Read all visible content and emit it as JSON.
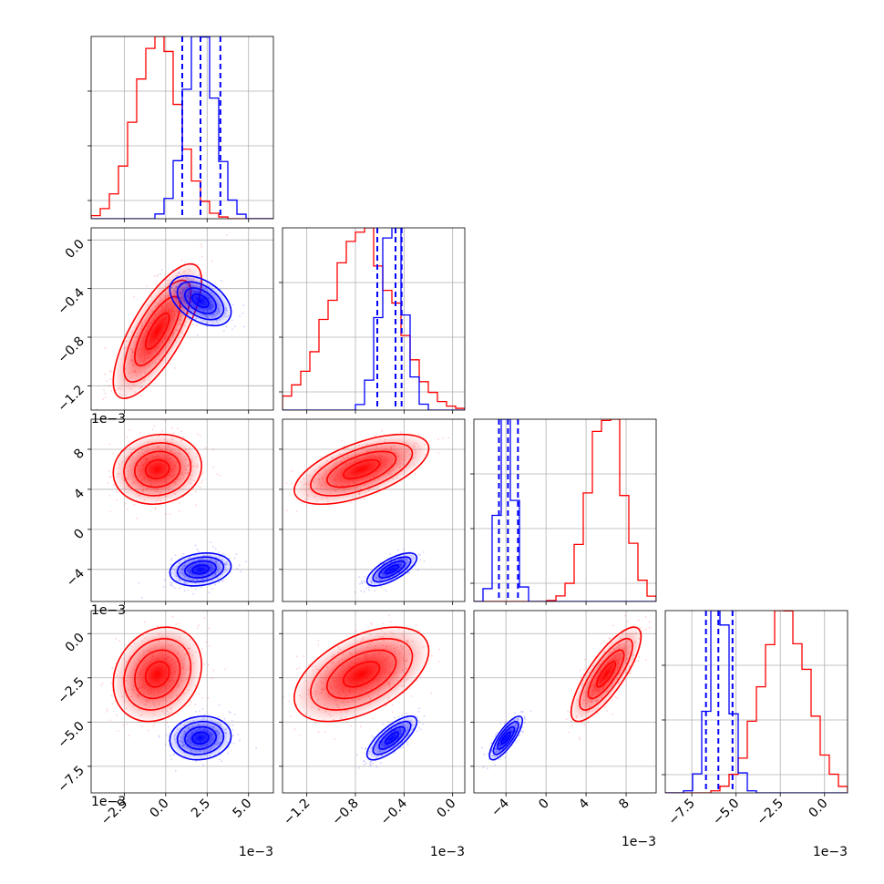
{
  "chart_data": {
    "type": "corner",
    "grid": true,
    "series": [
      {
        "name": "",
        "color": "#ff0000",
        "means": [
          -0.5,
          -0.75,
          6.0,
          -2.3
        ],
        "sds": [
          1.3,
          0.27,
          1.7,
          1.3
        ]
      },
      {
        "name": "",
        "color": "#0000ff",
        "means": [
          2.1,
          -0.5,
          -4.0,
          -5.9
        ],
        "sds": [
          0.9,
          0.1,
          0.8,
          0.6
        ]
      }
    ],
    "correlations": [
      {
        "series": 0,
        "i": 1,
        "j": 0,
        "rho": 0.75
      },
      {
        "series": 1,
        "i": 1,
        "j": 0,
        "rho": -0.45
      },
      {
        "series": 0,
        "i": 2,
        "j": 0,
        "rho": 0.1
      },
      {
        "series": 1,
        "i": 2,
        "j": 0,
        "rho": 0.2
      },
      {
        "series": 0,
        "i": 2,
        "j": 1,
        "rho": 0.6
      },
      {
        "series": 1,
        "i": 2,
        "j": 1,
        "rho": 0.7
      },
      {
        "series": 0,
        "i": 3,
        "j": 0,
        "rho": 0.2
      },
      {
        "series": 1,
        "i": 3,
        "j": 0,
        "rho": 0.1
      },
      {
        "series": 0,
        "i": 3,
        "j": 1,
        "rho": 0.5
      },
      {
        "series": 1,
        "i": 3,
        "j": 1,
        "rho": 0.75
      },
      {
        "series": 0,
        "i": 3,
        "j": 2,
        "rho": 0.8
      },
      {
        "series": 1,
        "i": 3,
        "j": 2,
        "rho": 0.8
      }
    ],
    "quantile_lines": [
      {
        "param": 0,
        "color": "#0000ff",
        "values": [
          1.0,
          2.1,
          3.3
        ]
      },
      {
        "param": 1,
        "color": "#0000ff",
        "values": [
          -0.62,
          -0.47,
          -0.42
        ]
      },
      {
        "param": 2,
        "color": "#0000ff",
        "values": [
          -4.7,
          -3.8,
          -2.8
        ]
      },
      {
        "param": 3,
        "color": "#0000ff",
        "values": [
          -6.7,
          -6.0,
          -5.2
        ]
      }
    ],
    "axes": [
      {
        "range": [
          -4.5,
          6.5
        ],
        "ticks": [
          -2.5,
          0.0,
          2.5,
          5.0
        ],
        "tick_labels": [
          "−2.5",
          "0.0",
          "2.5",
          "5.0"
        ],
        "offset": "1e−3"
      },
      {
        "range": [
          -1.4,
          0.1
        ],
        "ticks": [
          -1.2,
          -0.8,
          -0.4,
          0.0
        ],
        "tick_labels": [
          "−1.2",
          "−0.8",
          "−0.4",
          "0.0"
        ],
        "offset": "1e−3"
      },
      {
        "range": [
          -7.2,
          11.0
        ],
        "ticks": [
          -4,
          0,
          4,
          8
        ],
        "tick_labels": [
          "−4",
          "0",
          "4",
          "8"
        ],
        "offset": "1e−3"
      },
      {
        "range": [
          -9.0,
          1.3
        ],
        "ticks": [
          -7.5,
          -5.0,
          -2.5,
          0.0
        ],
        "tick_labels": [
          "−7.5",
          "−5.0",
          "−2.5",
          "0.0"
        ],
        "offset": "1e−3"
      }
    ]
  }
}
